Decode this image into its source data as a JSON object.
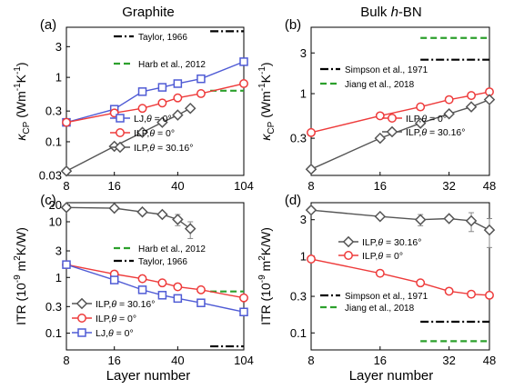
{
  "header": {
    "graphite": "Graphite",
    "bn_prefix": "Bulk ",
    "bn_h": "h",
    "bn_suffix": "-BN",
    "color": "#2ca02c"
  },
  "x_label": "Layer number",
  "chart_data": [
    {
      "id": "a",
      "panel_label": "(a)",
      "type": "line",
      "x_scale": "log2",
      "y_scale": "log",
      "xlim": [
        8,
        104
      ],
      "ylim": [
        0.03,
        6
      ],
      "x_ticks": [
        8,
        16,
        40,
        104
      ],
      "y_ticks": [
        0.03,
        0.1,
        0.3,
        1,
        3
      ],
      "y_label": {
        "main": "κ",
        "sub": "CP",
        "rest": " (Wm",
        "exp1": "-1",
        "mid": "K",
        "exp2": "-1",
        "end": ")"
      },
      "series": [
        {
          "key": "lj0",
          "marker": "square",
          "color": "#4f5bd5",
          "error": [],
          "x": [
            8,
            16,
            24,
            32,
            40,
            56,
            104
          ],
          "y": [
            0.2,
            0.32,
            0.6,
            0.7,
            0.8,
            0.95,
            1.75
          ],
          "legend": {
            "prefix": "LJ,",
            "theta": "θ",
            "suffix": " = 0°"
          }
        },
        {
          "key": "ilp0",
          "marker": "circle",
          "color": "#ee3b3b",
          "error": [],
          "x": [
            8,
            16,
            24,
            32,
            40,
            56,
            104
          ],
          "y": [
            0.2,
            0.28,
            0.33,
            0.4,
            0.48,
            0.56,
            0.8
          ],
          "legend": {
            "prefix": "ILP,",
            "theta": "θ",
            "suffix": " = 0°"
          }
        },
        {
          "key": "ilp30",
          "marker": "diamond",
          "color": "#555555",
          "error": [],
          "x": [
            8,
            16,
            24,
            32,
            40,
            48
          ],
          "y": [
            0.035,
            0.085,
            0.14,
            0.2,
            0.26,
            0.33
          ],
          "legend": {
            "prefix": "ILP,",
            "theta": "θ",
            "suffix": " = 30.16°"
          }
        }
      ],
      "refs": [
        {
          "key": "taylor",
          "label": "Taylor, 1966",
          "dash": "dashdot",
          "color": "#000000",
          "x": [
            64,
            104
          ],
          "y": 5.2
        },
        {
          "key": "harb",
          "label": "Harb et al., 2012",
          "dash": "dash",
          "color": "#2ca02c",
          "x": [
            64,
            104
          ],
          "y": 0.62
        }
      ]
    },
    {
      "id": "b",
      "panel_label": "(b)",
      "type": "line",
      "x_scale": "log2",
      "y_scale": "log",
      "xlim": [
        8,
        48
      ],
      "ylim": [
        0.11,
        6
      ],
      "x_ticks": [
        8,
        16,
        32,
        48
      ],
      "y_ticks": [
        0.3,
        1,
        3
      ],
      "y_label": {
        "main": "κ",
        "sub": "CP",
        "rest": " (Wm",
        "exp1": "-1",
        "mid": "K",
        "exp2": "-1",
        "end": ")"
      },
      "series": [
        {
          "key": "ilp0",
          "marker": "circle",
          "color": "#ee3b3b",
          "error": [],
          "x": [
            8,
            16,
            24,
            32,
            40,
            48
          ],
          "y": [
            0.35,
            0.55,
            0.7,
            0.85,
            0.95,
            1.05
          ],
          "legend": {
            "prefix": "ILP,",
            "theta": "θ",
            "suffix": " = 0°"
          }
        },
        {
          "key": "ilp30",
          "marker": "diamond",
          "color": "#555555",
          "error": [],
          "x": [
            8,
            16,
            24,
            32,
            40,
            48
          ],
          "y": [
            0.13,
            0.3,
            0.45,
            0.58,
            0.7,
            0.85
          ],
          "legend": {
            "prefix": "ILP,",
            "theta": "θ",
            "suffix": " = 30.16°"
          }
        }
      ],
      "refs": [
        {
          "key": "simpson",
          "label": "Simpson et al., 1971",
          "dash": "dashdot",
          "color": "#000000",
          "x": [
            24,
            48
          ],
          "y": 2.5
        },
        {
          "key": "jiang",
          "label": "Jiang et al., 2018",
          "dash": "dash",
          "color": "#2ca02c",
          "x": [
            24,
            48
          ],
          "y": 4.5
        }
      ]
    },
    {
      "id": "c",
      "panel_label": "(c)",
      "type": "line",
      "x_scale": "log2",
      "y_scale": "log",
      "xlim": [
        8,
        104
      ],
      "ylim": [
        0.05,
        22
      ],
      "x_ticks": [
        8,
        16,
        40,
        104
      ],
      "y_ticks": [
        0.1,
        0.3,
        1,
        3,
        10,
        20
      ],
      "y_label": {
        "main": "ITR (10",
        "exp": "-9",
        "rest": " m",
        "exp2": "2",
        "end": "K/W)"
      },
      "series": [
        {
          "key": "ilp30",
          "marker": "diamond",
          "color": "#555555",
          "x": [
            8,
            16,
            24,
            32,
            40,
            48
          ],
          "y": [
            18,
            17.5,
            15,
            13.5,
            11,
            7.5
          ],
          "error": [
            0,
            0,
            0,
            0,
            2.5,
            2.5
          ],
          "legend": {
            "prefix": "ILP,",
            "theta": "θ",
            "suffix": " = 30.16°"
          }
        },
        {
          "key": "ilp0",
          "marker": "circle",
          "color": "#ee3b3b",
          "error": [],
          "x": [
            8,
            16,
            24,
            32,
            40,
            56,
            104
          ],
          "y": [
            1.7,
            1.15,
            0.95,
            0.8,
            0.68,
            0.6,
            0.43
          ],
          "legend": {
            "prefix": "ILP,",
            "theta": "θ",
            "suffix": " = 0°"
          }
        },
        {
          "key": "lj0",
          "marker": "square",
          "color": "#4f5bd5",
          "error": [],
          "x": [
            8,
            16,
            24,
            32,
            40,
            56,
            104
          ],
          "y": [
            1.7,
            0.9,
            0.6,
            0.48,
            0.42,
            0.35,
            0.24
          ],
          "legend": {
            "prefix": "LJ,",
            "theta": "θ",
            "suffix": " = 0°"
          }
        }
      ],
      "refs": [
        {
          "key": "harb",
          "label": "Harb et al., 2012",
          "dash": "dash",
          "color": "#2ca02c",
          "x": [
            64,
            104
          ],
          "y": 0.56
        },
        {
          "key": "taylor",
          "label": "Taylor, 1966",
          "dash": "dashdot",
          "color": "#000000",
          "x": [
            64,
            104
          ],
          "y": 0.058
        }
      ]
    },
    {
      "id": "d",
      "panel_label": "(d)",
      "type": "line",
      "x_scale": "log2",
      "y_scale": "log",
      "xlim": [
        8,
        48
      ],
      "ylim": [
        0.06,
        5
      ],
      "x_ticks": [
        8,
        16,
        32,
        48
      ],
      "y_ticks": [
        0.1,
        0.3,
        1,
        3
      ],
      "y_label": {
        "main": "ITR (10",
        "exp": "-9",
        "rest": " m",
        "exp2": "2",
        "end": "K/W)"
      },
      "series": [
        {
          "key": "ilp30",
          "marker": "diamond",
          "color": "#555555",
          "x": [
            8,
            16,
            24,
            32,
            40,
            48
          ],
          "y": [
            4,
            3.3,
            3,
            3.1,
            2.9,
            2.2
          ],
          "error": [
            0,
            0,
            0.5,
            0,
            0.8,
            0.9
          ],
          "legend": {
            "prefix": "ILP,",
            "theta": "θ",
            "suffix": " = 30.16°"
          }
        },
        {
          "key": "ilp0",
          "marker": "circle",
          "color": "#ee3b3b",
          "error": [],
          "x": [
            8,
            16,
            24,
            32,
            40,
            48
          ],
          "y": [
            0.92,
            0.6,
            0.45,
            0.35,
            0.32,
            0.31
          ],
          "legend": {
            "prefix": "ILP,",
            "theta": "θ",
            "suffix": " = 0°"
          }
        }
      ],
      "refs": [
        {
          "key": "simpson",
          "label": "Simpson et al., 1971",
          "dash": "dashdot",
          "color": "#000000",
          "x": [
            24,
            48
          ],
          "y": 0.14
        },
        {
          "key": "jiang",
          "label": "Jiang et al., 2018",
          "dash": "dash",
          "color": "#2ca02c",
          "x": [
            24,
            48
          ],
          "y": 0.078
        }
      ]
    }
  ]
}
